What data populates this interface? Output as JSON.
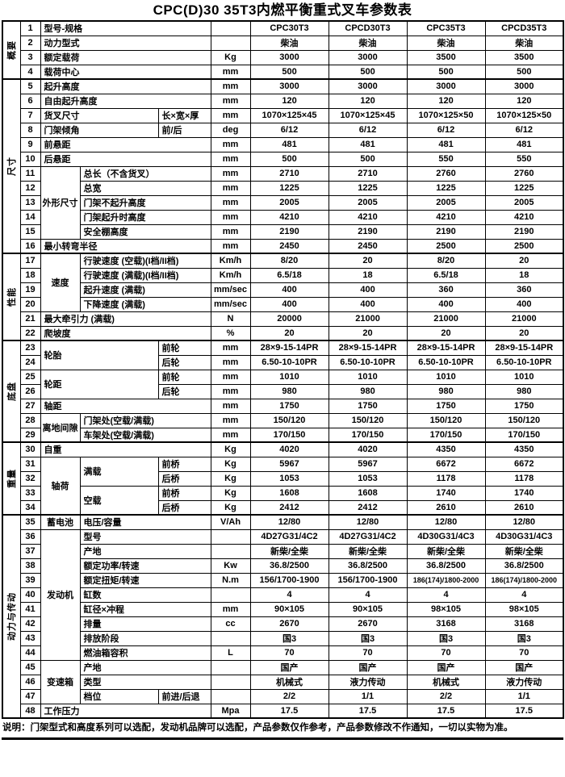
{
  "title": "CPC(D)30 35T3内燃平衡重式叉车参数表",
  "note": "说明：门架型式和高度系列可以选配，发动机品牌可以选配，产品参数仅作参考，产品参数修改不作通知，一切以实物为准。",
  "colors": {
    "text": "#000000",
    "background": "#ffffff",
    "border": "#000000"
  },
  "table": {
    "sections": [
      {
        "label": "概要",
        "row_count": 4
      },
      {
        "label": "尺寸",
        "row_count": 12
      },
      {
        "label": "性能",
        "row_count": 6
      },
      {
        "label": "底盘",
        "row_count": 7
      },
      {
        "label": "重量",
        "row_count": 5
      },
      {
        "label": "动力与传动",
        "row_count": 14
      }
    ],
    "rows": [
      {
        "n": "1",
        "cells": [
          {
            "t": "型号-规格",
            "cs": 3
          }
        ],
        "u": "",
        "v": [
          "CPC30T3",
          "CPCD30T3",
          "CPC35T3",
          "CPCD35T3"
        ]
      },
      {
        "n": "2",
        "cells": [
          {
            "t": "动力型式",
            "cs": 3
          }
        ],
        "u": "",
        "v": [
          "柴油",
          "柴油",
          "柴油",
          "柴油"
        ]
      },
      {
        "n": "3",
        "cells": [
          {
            "t": "额定载荷",
            "cs": 3
          }
        ],
        "u": "Kg",
        "v": [
          "3000",
          "3000",
          "3500",
          "3500"
        ]
      },
      {
        "n": "4",
        "cells": [
          {
            "t": "载荷中心",
            "cs": 3
          }
        ],
        "u": "mm",
        "v": [
          "500",
          "500",
          "500",
          "500"
        ]
      },
      {
        "n": "5",
        "cells": [
          {
            "t": "起升高度",
            "cs": 3
          }
        ],
        "u": "mm",
        "v": [
          "3000",
          "3000",
          "3000",
          "3000"
        ]
      },
      {
        "n": "6",
        "cells": [
          {
            "t": "自由起升高度",
            "cs": 3
          }
        ],
        "u": "mm",
        "v": [
          "120",
          "120",
          "120",
          "120"
        ]
      },
      {
        "n": "7",
        "cells": [
          {
            "t": "货叉尺寸",
            "cs": 2
          },
          {
            "t": "长×宽×厚",
            "cs": 1
          }
        ],
        "u": "mm",
        "v": [
          "1070×125×45",
          "1070×125×45",
          "1070×125×50",
          "1070×125×50"
        ]
      },
      {
        "n": "8",
        "cells": [
          {
            "t": "门架倾角",
            "cs": 2
          },
          {
            "t": "前/后",
            "cs": 1
          }
        ],
        "u": "deg",
        "v": [
          "6/12",
          "6/12",
          "6/12",
          "6/12"
        ]
      },
      {
        "n": "9",
        "cells": [
          {
            "t": "前悬距",
            "cs": 3
          }
        ],
        "u": "mm",
        "v": [
          "481",
          "481",
          "481",
          "481"
        ]
      },
      {
        "n": "10",
        "cells": [
          {
            "t": "后悬距",
            "cs": 3
          }
        ],
        "u": "mm",
        "v": [
          "500",
          "500",
          "550",
          "550"
        ]
      },
      {
        "n": "11",
        "cells": [
          {
            "t": "外形尺寸",
            "cs": 1,
            "rs": 5,
            "grp": true
          },
          {
            "t": "总长（不含货叉）",
            "cs": 2
          }
        ],
        "u": "mm",
        "v": [
          "2710",
          "2710",
          "2760",
          "2760"
        ]
      },
      {
        "n": "12",
        "cells": [
          {
            "t": "总宽",
            "cs": 2
          }
        ],
        "u": "mm",
        "v": [
          "1225",
          "1225",
          "1225",
          "1225"
        ]
      },
      {
        "n": "13",
        "cells": [
          {
            "t": "门架不起升高度",
            "cs": 2
          }
        ],
        "u": "mm",
        "v": [
          "2005",
          "2005",
          "2005",
          "2005"
        ]
      },
      {
        "n": "14",
        "cells": [
          {
            "t": "门架起升时高度",
            "cs": 2
          }
        ],
        "u": "mm",
        "v": [
          "4210",
          "4210",
          "4210",
          "4210"
        ]
      },
      {
        "n": "15",
        "cells": [
          {
            "t": "安全棚高度",
            "cs": 2
          }
        ],
        "u": "mm",
        "v": [
          "2190",
          "2190",
          "2190",
          "2190"
        ]
      },
      {
        "n": "16",
        "cells": [
          {
            "t": "最小转弯半径",
            "cs": 3
          }
        ],
        "u": "mm",
        "v": [
          "2450",
          "2450",
          "2500",
          "2500"
        ]
      },
      {
        "n": "17",
        "cells": [
          {
            "t": "速度",
            "cs": 1,
            "rs": 4,
            "grp": true
          },
          {
            "t": "行驶速度 (空载)(I档/II档)",
            "cs": 2
          }
        ],
        "u": "Km/h",
        "v": [
          "8/20",
          "20",
          "8/20",
          "20"
        ]
      },
      {
        "n": "18",
        "cells": [
          {
            "t": "行驶速度 (满载)(I档/II档)",
            "cs": 2
          }
        ],
        "u": "Km/h",
        "v": [
          "6.5/18",
          "18",
          "6.5/18",
          "18"
        ]
      },
      {
        "n": "19",
        "cells": [
          {
            "t": "起升速度 (满载)",
            "cs": 2
          }
        ],
        "u": "mm/sec",
        "v": [
          "400",
          "400",
          "360",
          "360"
        ]
      },
      {
        "n": "20",
        "cells": [
          {
            "t": "下降速度 (满载)",
            "cs": 2
          }
        ],
        "u": "mm/sec",
        "v": [
          "400",
          "400",
          "400",
          "400"
        ]
      },
      {
        "n": "21",
        "cells": [
          {
            "t": "最大牵引力 (满载)",
            "cs": 3
          }
        ],
        "u": "N",
        "v": [
          "20000",
          "21000",
          "21000",
          "21000"
        ]
      },
      {
        "n": "22",
        "cells": [
          {
            "t": "爬坡度",
            "cs": 3
          }
        ],
        "u": "%",
        "v": [
          "20",
          "20",
          "20",
          "20"
        ]
      },
      {
        "n": "23",
        "cells": [
          {
            "t": "轮胎",
            "cs": 2,
            "rs": 2,
            "grp": true
          },
          {
            "t": "前轮",
            "cs": 1
          }
        ],
        "u": "mm",
        "v": [
          "28×9-15-14PR",
          "28×9-15-14PR",
          "28×9-15-14PR",
          "28×9-15-14PR"
        ]
      },
      {
        "n": "24",
        "cells": [
          {
            "t": "后轮",
            "cs": 1
          }
        ],
        "u": "mm",
        "v": [
          "6.50-10-10PR",
          "6.50-10-10PR",
          "6.50-10-10PR",
          "6.50-10-10PR"
        ]
      },
      {
        "n": "25",
        "cells": [
          {
            "t": "轮距",
            "cs": 2,
            "rs": 2,
            "grp": true
          },
          {
            "t": "前轮",
            "cs": 1
          }
        ],
        "u": "mm",
        "v": [
          "1010",
          "1010",
          "1010",
          "1010"
        ]
      },
      {
        "n": "26",
        "cells": [
          {
            "t": "后轮",
            "cs": 1
          }
        ],
        "u": "mm",
        "v": [
          "980",
          "980",
          "980",
          "980"
        ]
      },
      {
        "n": "27",
        "cells": [
          {
            "t": "轴距",
            "cs": 3
          }
        ],
        "u": "mm",
        "v": [
          "1750",
          "1750",
          "1750",
          "1750"
        ]
      },
      {
        "n": "28",
        "cells": [
          {
            "t": "离地间隙",
            "cs": 1,
            "rs": 2,
            "grp": true
          },
          {
            "t": "门架处(空载/满载)",
            "cs": 2
          }
        ],
        "u": "mm",
        "v": [
          "150/120",
          "150/120",
          "150/120",
          "150/120"
        ]
      },
      {
        "n": "29",
        "cells": [
          {
            "t": "车架处(空载/满载)",
            "cs": 2
          }
        ],
        "u": "mm",
        "v": [
          "170/150",
          "170/150",
          "170/150",
          "170/150"
        ]
      },
      {
        "n": "30",
        "cells": [
          {
            "t": "自重",
            "cs": 3
          }
        ],
        "u": "Kg",
        "v": [
          "4020",
          "4020",
          "4350",
          "4350"
        ]
      },
      {
        "n": "31",
        "cells": [
          {
            "t": "轴荷",
            "cs": 1,
            "rs": 4,
            "grp": true
          },
          {
            "t": "满载",
            "cs": 1,
            "rs": 2
          },
          {
            "t": "前桥",
            "cs": 1
          }
        ],
        "u": "Kg",
        "v": [
          "5967",
          "5967",
          "6672",
          "6672"
        ]
      },
      {
        "n": "32",
        "cells": [
          {
            "t": "后桥",
            "cs": 1
          }
        ],
        "u": "Kg",
        "v": [
          "1053",
          "1053",
          "1178",
          "1178"
        ]
      },
      {
        "n": "33",
        "cells": [
          {
            "t": "空载",
            "cs": 1,
            "rs": 2
          },
          {
            "t": "前桥",
            "cs": 1
          }
        ],
        "u": "Kg",
        "v": [
          "1608",
          "1608",
          "1740",
          "1740"
        ]
      },
      {
        "n": "34",
        "cells": [
          {
            "t": "后桥",
            "cs": 1
          }
        ],
        "u": "Kg",
        "v": [
          "2412",
          "2412",
          "2610",
          "2610"
        ]
      },
      {
        "n": "35",
        "cells": [
          {
            "t": "蓄电池",
            "cs": 1,
            "grp": true
          },
          {
            "t": "电压/容量",
            "cs": 2
          }
        ],
        "u": "V/Ah",
        "v": [
          "12/80",
          "12/80",
          "12/80",
          "12/80"
        ]
      },
      {
        "n": "36",
        "cells": [
          {
            "t": "发动机",
            "cs": 1,
            "rs": 9,
            "grp": true
          },
          {
            "t": "型号",
            "cs": 2
          }
        ],
        "u": "",
        "v": [
          "4D27G31/4C2",
          "4D27G31/4C2",
          "4D30G31/4C3",
          "4D30G31/4C3"
        ]
      },
      {
        "n": "37",
        "cells": [
          {
            "t": "产地",
            "cs": 2
          }
        ],
        "u": "",
        "v": [
          "新柴/全柴",
          "新柴/全柴",
          "新柴/全柴",
          "新柴/全柴"
        ]
      },
      {
        "n": "38",
        "cells": [
          {
            "t": "额定功率/转速",
            "cs": 2
          }
        ],
        "u": "Kw",
        "v": [
          "36.8/2500",
          "36.8/2500",
          "36.8/2500",
          "36.8/2500"
        ]
      },
      {
        "n": "39",
        "cells": [
          {
            "t": "额定扭矩/转速",
            "cs": 2
          }
        ],
        "u": "N.m",
        "v": [
          "156/1700-1900",
          "156/1700-1900",
          "186(174)/1800-2000",
          "186(174)/1800-2000"
        ]
      },
      {
        "n": "40",
        "cells": [
          {
            "t": "缸数",
            "cs": 2
          }
        ],
        "u": "",
        "v": [
          "4",
          "4",
          "4",
          "4"
        ]
      },
      {
        "n": "41",
        "cells": [
          {
            "t": "缸径×冲程",
            "cs": 2
          }
        ],
        "u": "mm",
        "v": [
          "90×105",
          "90×105",
          "98×105",
          "98×105"
        ]
      },
      {
        "n": "42",
        "cells": [
          {
            "t": "排量",
            "cs": 2
          }
        ],
        "u": "cc",
        "v": [
          "2670",
          "2670",
          "3168",
          "3168"
        ]
      },
      {
        "n": "43",
        "cells": [
          {
            "t": "排放阶段",
            "cs": 2
          }
        ],
        "u": "",
        "v": [
          "国3",
          "国3",
          "国3",
          "国3"
        ]
      },
      {
        "n": "44",
        "cells": [
          {
            "t": "燃油箱容积",
            "cs": 2
          }
        ],
        "u": "L",
        "v": [
          "70",
          "70",
          "70",
          "70"
        ]
      },
      {
        "n": "45",
        "cells": [
          {
            "t": "变速箱",
            "cs": 1,
            "rs": 3,
            "grp": true
          },
          {
            "t": "产地",
            "cs": 2
          }
        ],
        "u": "",
        "v": [
          "国产",
          "国产",
          "国产",
          "国产"
        ]
      },
      {
        "n": "46",
        "cells": [
          {
            "t": "类型",
            "cs": 2
          }
        ],
        "u": "",
        "v": [
          "机械式",
          "液力传动",
          "机械式",
          "液力传动"
        ]
      },
      {
        "n": "47",
        "cells": [
          {
            "t": "档位",
            "cs": 1
          },
          {
            "t": "前进/后退",
            "cs": 1
          }
        ],
        "u": "",
        "v": [
          "2/2",
          "1/1",
          "2/2",
          "1/1"
        ]
      },
      {
        "n": "48",
        "cells": [
          {
            "t": "工作压力",
            "cs": 3
          }
        ],
        "u": "Mpa",
        "v": [
          "17.5",
          "17.5",
          "17.5",
          "17.5"
        ]
      }
    ]
  }
}
